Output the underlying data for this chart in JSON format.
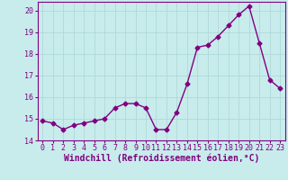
{
  "x": [
    0,
    1,
    2,
    3,
    4,
    5,
    6,
    7,
    8,
    9,
    10,
    11,
    12,
    13,
    14,
    15,
    16,
    17,
    18,
    19,
    20,
    21,
    22,
    23
  ],
  "y": [
    14.9,
    14.8,
    14.5,
    14.7,
    14.8,
    14.9,
    15.0,
    15.5,
    15.7,
    15.7,
    15.5,
    14.5,
    14.5,
    15.3,
    16.6,
    18.3,
    18.4,
    18.8,
    19.3,
    19.8,
    20.2,
    18.5,
    16.8,
    16.4
  ],
  "line_color": "#800080",
  "marker": "D",
  "marker_size": 2.5,
  "bg_color": "#c8ecec",
  "grid_color": "#b0d8d8",
  "xlabel": "Windchill (Refroidissement éolien,°C)",
  "xlabel_fontsize": 7,
  "tick_fontsize": 6,
  "ylim": [
    14,
    20.4
  ],
  "yticks": [
    14,
    15,
    16,
    17,
    18,
    19,
    20
  ],
  "xticks": [
    0,
    1,
    2,
    3,
    4,
    5,
    6,
    7,
    8,
    9,
    10,
    11,
    12,
    13,
    14,
    15,
    16,
    17,
    18,
    19,
    20,
    21,
    22,
    23
  ],
  "line_width": 1.0
}
